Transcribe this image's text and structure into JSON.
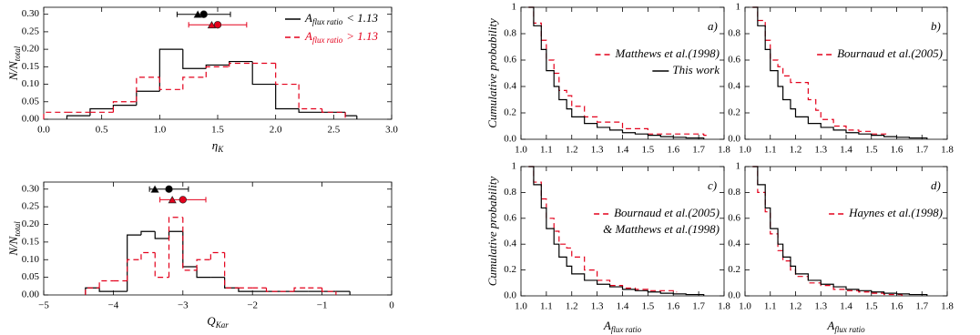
{
  "chart_data": [
    {
      "type": "histogram",
      "xlabel": {
        "text": "η",
        "sub": "K"
      },
      "ylabel": {
        "text": "N/N",
        "sub": "total"
      },
      "xlim": [
        0,
        3
      ],
      "xticks": [
        {
          "value": 0,
          "label": "0.0"
        },
        0.5,
        {
          "value": 1,
          "label": "1.0"
        },
        1.5,
        {
          "value": 2,
          "label": "2.0"
        },
        2.5,
        {
          "value": 3,
          "label": "3.0"
        }
      ],
      "ylim": [
        0,
        0.32
      ],
      "yticks": [
        {
          "value": 0,
          "label": "0.00"
        },
        0.05,
        {
          "value": 0.1,
          "label": "0.10"
        },
        0.15,
        {
          "value": 0.2,
          "label": "0.20"
        },
        0.25,
        {
          "value": 0.3,
          "label": "0.30"
        }
      ],
      "series": [
        {
          "name": {
            "text": "A",
            "sub": "flux ratio",
            "rest": "< 1.13"
          },
          "color": "#000000",
          "dashed": false,
          "bins": [
            0.2,
            0.4,
            0.6,
            0.8,
            1.0,
            1.2,
            1.4,
            1.6,
            1.8,
            2.0,
            2.2,
            2.4,
            2.6,
            2.7
          ],
          "values": [
            0.01,
            0.03,
            0.04,
            0.08,
            0.2,
            0.145,
            0.155,
            0.165,
            0.1,
            0.03,
            0.02,
            0.02,
            0.01
          ],
          "points": [
            {
              "x": 1.38,
              "y": 0.3,
              "xerr": 0.23,
              "marker": "circle"
            },
            {
              "x": 1.36,
              "y": 0.3,
              "marker": "triangle"
            }
          ]
        },
        {
          "name": {
            "text": "A",
            "sub": "flux ratio",
            "rest": "> 1.13"
          },
          "color": "#e3001b",
          "dashed": true,
          "bins": [
            0,
            0.2,
            0.4,
            0.6,
            0.8,
            1.0,
            1.2,
            1.4,
            1.6,
            1.8,
            2.0,
            2.2,
            2.4,
            2.6
          ],
          "values": [
            0.02,
            0.02,
            0.02,
            0.05,
            0.12,
            0.085,
            0.12,
            0.15,
            0.16,
            0.16,
            0.1,
            0.03,
            0.02
          ],
          "points": [
            {
              "x": 1.5,
              "y": 0.27,
              "xerr": 0.25,
              "marker": "circle"
            },
            {
              "x": 1.48,
              "y": 0.27,
              "marker": "triangle"
            }
          ]
        }
      ]
    },
    {
      "type": "histogram",
      "xlabel": {
        "text": "Q",
        "sub": "Kar"
      },
      "ylabel": {
        "text": "N/N",
        "sub": "total"
      },
      "xlim": [
        -5,
        0
      ],
      "xticks": [
        {
          "value": -5,
          "label": "−5"
        },
        {
          "value": -4,
          "label": "−4"
        },
        {
          "value": -3,
          "label": "−3"
        },
        {
          "value": -2,
          "label": "−2"
        },
        {
          "value": -1,
          "label": "−1"
        },
        0
      ],
      "ylim": [
        0,
        0.32
      ],
      "yticks": [
        {
          "value": 0,
          "label": "0.00"
        },
        0.05,
        {
          "value": 0.1,
          "label": "0.10"
        },
        0.15,
        {
          "value": 0.2,
          "label": "0.20"
        },
        0.25,
        {
          "value": 0.3,
          "label": "0.30"
        }
      ],
      "series": [
        {
          "color": "#000000",
          "dashed": false,
          "bins": [
            -4.4,
            -4.2,
            -4.0,
            -3.8,
            -3.6,
            -3.4,
            -3.2,
            -3.0,
            -2.8,
            -2.6,
            -2.4,
            -2.2,
            -2.0,
            -1.8,
            -1.6,
            -1.4,
            -1.2,
            -1.0,
            -0.8,
            -0.6
          ],
          "values": [
            0.02,
            0.01,
            0.01,
            0.17,
            0.18,
            0.16,
            0.18,
            0.08,
            0.05,
            0.05,
            0.02,
            0.01,
            0.01,
            0.01,
            0.01,
            0.01,
            0.01,
            0.01,
            0.01
          ],
          "points": [
            {
              "x": -3.2,
              "y": 0.3,
              "xerr": 0.28,
              "marker": "circle"
            },
            {
              "x": -3.35,
              "y": 0.3,
              "marker": "triangle"
            }
          ]
        },
        {
          "color": "#e3001b",
          "dashed": true,
          "bins": [
            -4.4,
            -4.2,
            -4.0,
            -3.8,
            -3.6,
            -3.4,
            -3.2,
            -3.0,
            -2.8,
            -2.6,
            -2.4,
            -2.2,
            -2.0,
            -1.8,
            -1.6,
            -1.4,
            -1.2,
            -1.0,
            -0.8
          ],
          "values": [
            0.02,
            0.04,
            0.04,
            0.1,
            0.12,
            0.05,
            0.22,
            0.07,
            0.1,
            0.12,
            0.02,
            0.02,
            0.02,
            0.01,
            0.01,
            0.02,
            0.02,
            0.01
          ],
          "points": [
            {
              "x": -3.0,
              "y": 0.27,
              "xerr": 0.33,
              "marker": "circle"
            },
            {
              "x": -3.1,
              "y": 0.27,
              "marker": "triangle"
            }
          ]
        }
      ]
    },
    {
      "type": "step",
      "label": "a)",
      "ylabel": {
        "text": "Cumulative probability"
      },
      "xlim": [
        1.0,
        1.8
      ],
      "xticks": [
        {
          "value": 1,
          "label": "1.0"
        },
        1.1,
        1.2,
        1.3,
        1.4,
        1.5,
        1.6,
        1.7,
        1.8
      ],
      "ylim": [
        0,
        1
      ],
      "yticks": [
        {
          "value": 0,
          "label": "0.0"
        },
        0.2,
        0.4,
        0.6,
        0.8,
        1
      ],
      "series": [
        {
          "name": [
            "Matthews et al.(1998)"
          ],
          "color": "#e3001b",
          "dashed": true,
          "x": [
            1.03,
            1.05,
            1.08,
            1.1,
            1.13,
            1.15,
            1.18,
            1.2,
            1.25,
            1.3,
            1.4,
            1.5,
            1.6,
            1.72
          ],
          "values": [
            1,
            0.88,
            0.75,
            0.6,
            0.5,
            0.37,
            0.33,
            0.25,
            0.17,
            0.13,
            0.08,
            0.04,
            0.04,
            0.03
          ]
        },
        {
          "name": [
            "This work"
          ],
          "color": "#000000",
          "dashed": false,
          "x": [
            1.03,
            1.05,
            1.08,
            1.1,
            1.13,
            1.15,
            1.18,
            1.2,
            1.25,
            1.3,
            1.35,
            1.4,
            1.45,
            1.5,
            1.55,
            1.6,
            1.65,
            1.72
          ],
          "values": [
            1,
            0.86,
            0.68,
            0.52,
            0.4,
            0.3,
            0.23,
            0.17,
            0.12,
            0.09,
            0.07,
            0.05,
            0.04,
            0.03,
            0.02,
            0.015,
            0.01,
            0
          ]
        }
      ]
    },
    {
      "type": "step",
      "label": "b)",
      "xlim": [
        1.0,
        1.8
      ],
      "xticks": [
        {
          "value": 1,
          "label": "1.0"
        },
        1.1,
        1.2,
        1.3,
        1.4,
        1.5,
        1.6,
        1.7,
        1.8
      ],
      "ylim": [
        0,
        1
      ],
      "yticks": [
        {
          "value": 0,
          "label": "0.0"
        },
        0.2,
        0.4,
        0.6,
        0.8,
        1
      ],
      "series": [
        {
          "name": [
            "Bournaud et al.(2005)"
          ],
          "color": "#e3001b",
          "dashed": true,
          "x": [
            1.03,
            1.05,
            1.08,
            1.1,
            1.13,
            1.15,
            1.18,
            1.2,
            1.25,
            1.28,
            1.3,
            1.35,
            1.4,
            1.45,
            1.5,
            1.55
          ],
          "values": [
            1,
            0.9,
            0.75,
            0.6,
            0.55,
            0.48,
            0.43,
            0.43,
            0.3,
            0.22,
            0.15,
            0.1,
            0.07,
            0.06,
            0.04,
            0.04
          ]
        },
        {
          "color": "#000000",
          "dashed": false,
          "x": [
            1.03,
            1.05,
            1.08,
            1.1,
            1.13,
            1.15,
            1.18,
            1.2,
            1.25,
            1.3,
            1.35,
            1.4,
            1.45,
            1.5,
            1.55,
            1.6,
            1.65,
            1.72
          ],
          "values": [
            1,
            0.86,
            0.68,
            0.52,
            0.4,
            0.3,
            0.23,
            0.17,
            0.12,
            0.09,
            0.07,
            0.05,
            0.04,
            0.03,
            0.02,
            0.015,
            0.01,
            0
          ]
        }
      ]
    },
    {
      "type": "step",
      "label": "c)",
      "ylabel": {
        "text": "Cumulative probability"
      },
      "xlabel": {
        "text": "A",
        "sub": "flux ratio"
      },
      "xlim": [
        1.0,
        1.8
      ],
      "xticks": [
        {
          "value": 1,
          "label": "1.0"
        },
        1.1,
        1.2,
        1.3,
        1.4,
        1.5,
        1.6,
        1.7,
        1.8
      ],
      "ylim": [
        0,
        1
      ],
      "yticks": [
        {
          "value": 0,
          "label": "0.0"
        },
        0.2,
        0.4,
        0.6,
        0.8,
        1
      ],
      "series": [
        {
          "name": [
            "Bournaud et al.(2005)",
            "& Matthews et al.(1998)"
          ],
          "color": "#e3001b",
          "dashed": true,
          "x": [
            1.03,
            1.05,
            1.08,
            1.1,
            1.13,
            1.15,
            1.18,
            1.2,
            1.25,
            1.3,
            1.35,
            1.4,
            1.45,
            1.5,
            1.6
          ],
          "values": [
            1,
            0.88,
            0.75,
            0.6,
            0.5,
            0.4,
            0.37,
            0.3,
            0.2,
            0.12,
            0.08,
            0.06,
            0.05,
            0.04,
            0.03
          ]
        },
        {
          "color": "#000000",
          "dashed": false,
          "x": [
            1.03,
            1.05,
            1.08,
            1.1,
            1.13,
            1.15,
            1.18,
            1.2,
            1.25,
            1.3,
            1.35,
            1.4,
            1.45,
            1.5,
            1.55,
            1.6,
            1.65,
            1.72
          ],
          "values": [
            1,
            0.86,
            0.68,
            0.52,
            0.4,
            0.3,
            0.23,
            0.17,
            0.12,
            0.09,
            0.07,
            0.05,
            0.04,
            0.03,
            0.02,
            0.015,
            0.01,
            0
          ]
        }
      ]
    },
    {
      "type": "step",
      "label": "d)",
      "xlabel": {
        "text": "A",
        "sub": "flux ratio"
      },
      "xlim": [
        1.0,
        1.8
      ],
      "xticks": [
        {
          "value": 1,
          "label": "1.0"
        },
        1.1,
        1.2,
        1.3,
        1.4,
        1.5,
        1.6,
        1.7,
        1.8
      ],
      "ylim": [
        0,
        1
      ],
      "yticks": [
        {
          "value": 0,
          "label": "0.0"
        },
        0.2,
        0.4,
        0.6,
        0.8,
        1
      ],
      "series": [
        {
          "name": [
            "Haynes et al.(1998)"
          ],
          "color": "#e3001b",
          "dashed": true,
          "x": [
            1.03,
            1.05,
            1.08,
            1.1,
            1.13,
            1.15,
            1.18,
            1.2,
            1.25,
            1.3,
            1.35,
            1.4,
            1.45,
            1.5,
            1.55,
            1.62
          ],
          "values": [
            1,
            0.8,
            0.65,
            0.48,
            0.35,
            0.27,
            0.2,
            0.15,
            0.1,
            0.08,
            0.05,
            0.04,
            0.03,
            0.02,
            0.01,
            0.005
          ]
        },
        {
          "color": "#000000",
          "dashed": false,
          "x": [
            1.03,
            1.05,
            1.08,
            1.1,
            1.13,
            1.15,
            1.18,
            1.2,
            1.25,
            1.3,
            1.35,
            1.4,
            1.45,
            1.5,
            1.55,
            1.6,
            1.65,
            1.72
          ],
          "values": [
            1,
            0.86,
            0.68,
            0.52,
            0.4,
            0.3,
            0.23,
            0.17,
            0.12,
            0.09,
            0.07,
            0.05,
            0.04,
            0.03,
            0.02,
            0.015,
            0.01,
            0
          ]
        }
      ]
    }
  ]
}
